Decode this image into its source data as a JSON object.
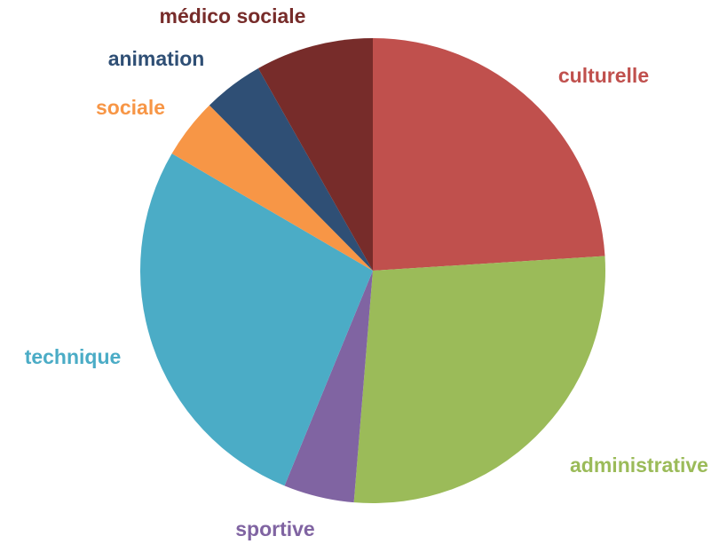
{
  "chart_data": {
    "type": "pie",
    "categories": [
      "culturelle",
      "administrative",
      "sportive",
      "technique",
      "sociale",
      "animation",
      "médico sociale"
    ],
    "values": [
      24,
      27.3,
      4.9,
      27.2,
      4.2,
      4.2,
      8.2
    ],
    "colors": [
      "#c0504d",
      "#9bbb59",
      "#8064a2",
      "#4bacc6",
      "#f79646",
      "#2f4f75",
      "#772c2a"
    ]
  }
}
